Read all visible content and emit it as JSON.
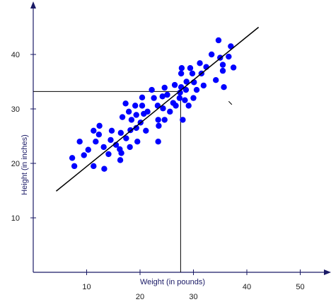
{
  "chart_data": {
    "type": "scatter",
    "title": "",
    "xlabel": "Weight (in pounds)",
    "ylabel": "Height (in inches)",
    "xlim": [
      0,
      55
    ],
    "ylim": [
      0,
      47
    ],
    "x_ticks": [
      10,
      20,
      30,
      40,
      50
    ],
    "y_ticks": [
      10,
      20,
      30,
      40
    ],
    "x_tick_labels": [
      {
        "value": 10,
        "label": "10",
        "row": "upper"
      },
      {
        "value": 20,
        "label": "20",
        "row": "lower"
      },
      {
        "value": 30,
        "label": "30",
        "row": "lower"
      },
      {
        "value": 40,
        "label": "40",
        "row": "upper"
      },
      {
        "value": 50,
        "label": "50",
        "row": "upper"
      }
    ],
    "grid": false,
    "legend": "none",
    "point_color": "#0000ff",
    "line_color": "#000000",
    "axis_color": "#1a1a66",
    "points": [
      {
        "x": 7.3,
        "y": 21.0
      },
      {
        "x": 7.7,
        "y": 19.5
      },
      {
        "x": 8.7,
        "y": 24.0
      },
      {
        "x": 9.5,
        "y": 21.5
      },
      {
        "x": 10.3,
        "y": 22.5
      },
      {
        "x": 11.3,
        "y": 26.0
      },
      {
        "x": 11.7,
        "y": 24.0
      },
      {
        "x": 11.3,
        "y": 19.5
      },
      {
        "x": 12.3,
        "y": 25.3
      },
      {
        "x": 12.4,
        "y": 26.9
      },
      {
        "x": 13.2,
        "y": 23.0
      },
      {
        "x": 13.3,
        "y": 19.0
      },
      {
        "x": 14.1,
        "y": 21.7
      },
      {
        "x": 14.5,
        "y": 24.3
      },
      {
        "x": 14.7,
        "y": 26.0
      },
      {
        "x": 15.5,
        "y": 23.4
      },
      {
        "x": 16.2,
        "y": 22.6
      },
      {
        "x": 16.4,
        "y": 25.6
      },
      {
        "x": 16.3,
        "y": 20.6
      },
      {
        "x": 16.5,
        "y": 21.9
      },
      {
        "x": 16.7,
        "y": 28.5
      },
      {
        "x": 17.3,
        "y": 31.0
      },
      {
        "x": 17.4,
        "y": 24.6
      },
      {
        "x": 17.9,
        "y": 29.5
      },
      {
        "x": 18.2,
        "y": 26.1
      },
      {
        "x": 18.4,
        "y": 28.0
      },
      {
        "x": 18.1,
        "y": 23.0
      },
      {
        "x": 19.1,
        "y": 30.6
      },
      {
        "x": 19.3,
        "y": 26.5
      },
      {
        "x": 19.3,
        "y": 28.9
      },
      {
        "x": 19.5,
        "y": 24.0
      },
      {
        "x": 20.1,
        "y": 27.5
      },
      {
        "x": 20.4,
        "y": 32.1
      },
      {
        "x": 20.4,
        "y": 30.6
      },
      {
        "x": 20.7,
        "y": 29.1
      },
      {
        "x": 21.1,
        "y": 26.0
      },
      {
        "x": 21.4,
        "y": 29.5
      },
      {
        "x": 22.2,
        "y": 33.5
      },
      {
        "x": 22.6,
        "y": 32.0
      },
      {
        "x": 23.3,
        "y": 30.6
      },
      {
        "x": 23.4,
        "y": 28.0
      },
      {
        "x": 23.4,
        "y": 24.0
      },
      {
        "x": 23.5,
        "y": 26.9
      },
      {
        "x": 24.2,
        "y": 32.3
      },
      {
        "x": 24.3,
        "y": 30.1
      },
      {
        "x": 24.6,
        "y": 28.0
      },
      {
        "x": 24.6,
        "y": 33.9
      },
      {
        "x": 25.1,
        "y": 32.6
      },
      {
        "x": 25.6,
        "y": 29.5
      },
      {
        "x": 26.2,
        "y": 31.1
      },
      {
        "x": 26.5,
        "y": 34.4
      },
      {
        "x": 26.7,
        "y": 30.6
      },
      {
        "x": 27.4,
        "y": 32.0
      },
      {
        "x": 27.5,
        "y": 33.0
      },
      {
        "x": 27.7,
        "y": 36.5
      },
      {
        "x": 27.8,
        "y": 37.5
      },
      {
        "x": 27.7,
        "y": 34.0
      },
      {
        "x": 28.0,
        "y": 28.0
      },
      {
        "x": 28.4,
        "y": 31.6
      },
      {
        "x": 28.7,
        "y": 35.0
      },
      {
        "x": 28.6,
        "y": 33.5
      },
      {
        "x": 29.1,
        "y": 30.6
      },
      {
        "x": 29.4,
        "y": 37.5
      },
      {
        "x": 29.8,
        "y": 36.5
      },
      {
        "x": 30.0,
        "y": 32.0
      },
      {
        "x": 30.1,
        "y": 34.9
      },
      {
        "x": 30.6,
        "y": 33.5
      },
      {
        "x": 31.2,
        "y": 38.4
      },
      {
        "x": 31.5,
        "y": 36.5
      },
      {
        "x": 31.9,
        "y": 34.3
      },
      {
        "x": 32.4,
        "y": 37.7
      },
      {
        "x": 33.4,
        "y": 40.0
      },
      {
        "x": 34.2,
        "y": 35.3
      },
      {
        "x": 34.7,
        "y": 42.6
      },
      {
        "x": 35.0,
        "y": 39.4
      },
      {
        "x": 35.5,
        "y": 38.1
      },
      {
        "x": 35.5,
        "y": 37.0
      },
      {
        "x": 35.7,
        "y": 34.0
      },
      {
        "x": 36.6,
        "y": 39.6
      },
      {
        "x": 37.0,
        "y": 41.5
      },
      {
        "x": 37.5,
        "y": 37.6
      }
    ],
    "trend_line": {
      "x": [
        4.3,
        42.2
      ],
      "y": [
        14.9,
        45.0
      ]
    },
    "reference_lines": {
      "x": 27.6,
      "y": 33.2
    },
    "tick_mark": {
      "x": [
        36.6,
        37.2
      ],
      "y": [
        31.4,
        30.8
      ]
    }
  }
}
